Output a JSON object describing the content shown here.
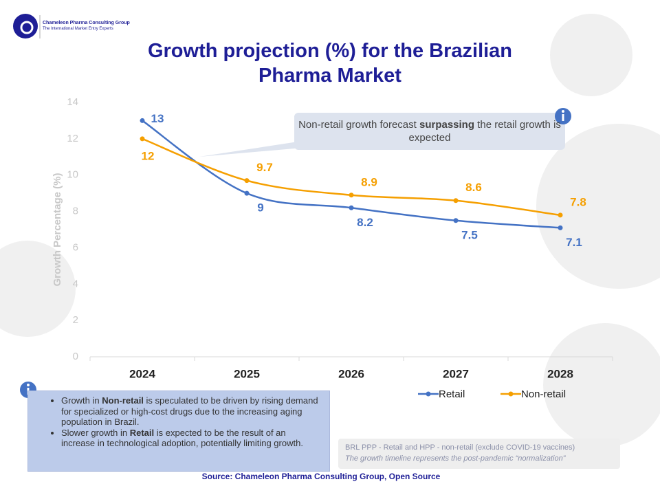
{
  "header": {
    "company": "Chameleon Pharma Consulting Group",
    "tagline": "The International Market Entry Experts"
  },
  "chart_data": {
    "type": "line",
    "title": "Growth projection (%) for the Brazilian Pharma Market",
    "y_label": "Growth Percentage (%)",
    "categories": [
      "2024",
      "2025",
      "2026",
      "2027",
      "2028"
    ],
    "series": [
      {
        "name": "Retail",
        "color": "#4472c4",
        "values": [
          13,
          9,
          8.2,
          7.5,
          7.1
        ]
      },
      {
        "name": "Non-retail",
        "color": "#f59f00",
        "values": [
          12,
          9.7,
          8.9,
          8.6,
          7.8
        ]
      }
    ],
    "ylim": [
      0,
      14
    ],
    "yticks": [
      0,
      2,
      4,
      6,
      8,
      10,
      12,
      14
    ],
    "legend": "bottom-right",
    "annotation": [
      "Non-retail growth forecast ",
      "surpassing",
      " the retail growth is expected"
    ]
  },
  "notes": {
    "bullets": [
      [
        "Growth in ",
        "Non-retail",
        " is speculated to be driven by rising demand for specialized or high-cost drugs due to the increasing aging population in Brazil."
      ],
      [
        "Slower growth in ",
        "Retail",
        " is expected to be the result of an increase in technological adoption, potentially limiting growth."
      ]
    ],
    "footnote": [
      "BRL PPP - Retail and HPP - non-retail (exclude COVID-19 vaccines)",
      "The growth timeline represents the post-pandemic “normalization”"
    ],
    "source": "Source: Chameleon Pharma Consulting Group, Open Source"
  }
}
